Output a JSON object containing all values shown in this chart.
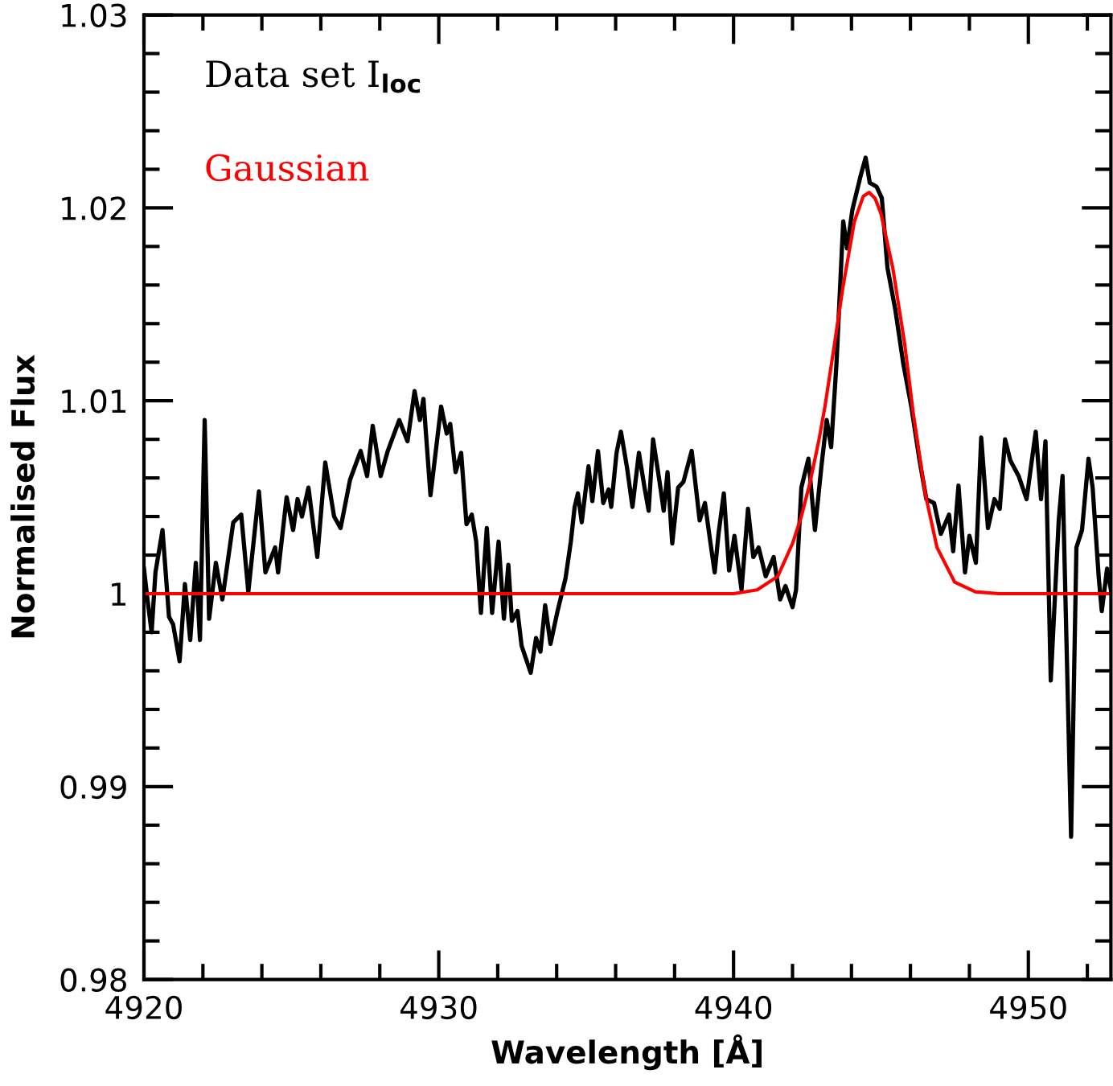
{
  "chart_data": {
    "type": "line",
    "xlabel": "Wavelength [Å]",
    "ylabel": "Normalised Flux",
    "legend": "top left",
    "xlim": [
      4920,
      4952.8
    ],
    "ylim": [
      0.98,
      1.03
    ],
    "xticks": [
      4920,
      {
        "value": 4922,
        "label": null
      },
      {
        "value": 4924,
        "label": null
      },
      {
        "value": 4926,
        "label": null
      },
      {
        "value": 4928,
        "label": null
      },
      4930,
      {
        "value": 4932,
        "label": null
      },
      {
        "value": 4934,
        "label": null
      },
      {
        "value": 4936,
        "label": null
      },
      {
        "value": 4938,
        "label": null
      },
      4940,
      {
        "value": 4942,
        "label": null
      },
      {
        "value": 4944,
        "label": null
      },
      {
        "value": 4946,
        "label": null
      },
      {
        "value": 4948,
        "label": null
      },
      4950,
      {
        "value": 4952,
        "label": null
      }
    ],
    "yticks": [
      0.98,
      {
        "value": 0.982,
        "label": null
      },
      {
        "value": 0.984,
        "label": null
      },
      {
        "value": 0.986,
        "label": null
      },
      {
        "value": 0.988,
        "label": null
      },
      0.99,
      {
        "value": 0.992,
        "label": null
      },
      {
        "value": 0.994,
        "label": null
      },
      {
        "value": 0.996,
        "label": null
      },
      {
        "value": 0.998,
        "label": null
      },
      1,
      {
        "value": 1.002,
        "label": null
      },
      {
        "value": 1.004,
        "label": null
      },
      {
        "value": 1.006,
        "label": null
      },
      {
        "value": 1.008,
        "label": null
      },
      1.01,
      {
        "value": 1.012,
        "label": null
      },
      {
        "value": 1.014,
        "label": null
      },
      {
        "value": 1.016,
        "label": null
      },
      {
        "value": 1.018,
        "label": null
      },
      1.02,
      {
        "value": 1.022,
        "label": null
      },
      {
        "value": 1.024,
        "label": null
      },
      {
        "value": 1.026,
        "label": null
      },
      {
        "value": 1.028,
        "label": null
      },
      1.03
    ],
    "series": [
      {
        "name": "Data set I$_{loc}$",
        "color": "#000000",
        "x": [
          4920.0,
          4920.12,
          4920.26,
          4920.39,
          4920.63,
          4920.85,
          4920.99,
          4921.21,
          4921.39,
          4921.57,
          4921.76,
          4921.9,
          4922.06,
          4922.21,
          4922.44,
          4922.66,
          4923.03,
          4923.3,
          4923.54,
          4923.9,
          4924.12,
          4924.45,
          4924.55,
          4924.84,
          4925.06,
          4925.21,
          4925.36,
          4925.58,
          4925.88,
          4926.15,
          4926.45,
          4926.67,
          4926.99,
          4927.35,
          4927.57,
          4927.76,
          4928.03,
          4928.27,
          4928.66,
          4928.94,
          4929.18,
          4929.36,
          4929.48,
          4929.72,
          4930.08,
          4930.27,
          4930.39,
          4930.57,
          4930.76,
          4930.94,
          4931.12,
          4931.27,
          4931.43,
          4931.63,
          4931.81,
          4932.03,
          4932.21,
          4932.36,
          4932.48,
          4932.67,
          4932.81,
          4933.12,
          4933.3,
          4933.45,
          4933.61,
          4933.79,
          4934.03,
          4934.3,
          4934.48,
          4934.61,
          4934.72,
          4934.85,
          4935.08,
          4935.21,
          4935.4,
          4935.58,
          4935.76,
          4935.85,
          4936.03,
          4936.18,
          4936.39,
          4936.57,
          4936.79,
          4936.98,
          4937.12,
          4937.27,
          4937.49,
          4937.63,
          4937.76,
          4937.92,
          4938.12,
          4938.3,
          4938.58,
          4938.85,
          4939.03,
          4939.21,
          4939.36,
          4939.49,
          4939.67,
          4939.85,
          4940.03,
          4940.27,
          4940.49,
          4940.67,
          4940.85,
          4941.09,
          4941.36,
          4941.58,
          4941.76,
          4942.0,
          4942.12,
          4942.3,
          4942.54,
          4942.76,
          4942.98,
          4943.16,
          4943.31,
          4943.49,
          4943.72,
          4943.85,
          4944.03,
          4944.3,
          4944.48,
          4944.62,
          4944.85,
          4945.03,
          4945.22,
          4945.49,
          4945.76,
          4946.03,
          4946.31,
          4946.54,
          4946.8,
          4947.03,
          4947.31,
          4947.45,
          4947.63,
          4947.85,
          4948.0,
          4948.22,
          4948.4,
          4948.63,
          4948.85,
          4949.03,
          4949.21,
          4949.39,
          4949.67,
          4949.94,
          4950.25,
          4950.43,
          4950.58,
          4950.76,
          4951.03,
          4951.16,
          4951.45,
          4951.63,
          4951.82,
          4952.04,
          4952.18,
          4952.39,
          4952.49,
          4952.67,
          4952.8
        ],
        "values": [
          1.0013,
          0.9997,
          0.998,
          1.0011,
          1.0033,
          0.9988,
          0.9984,
          0.9965,
          1.0005,
          0.9976,
          1.0016,
          0.9976,
          1.009,
          0.9987,
          1.0016,
          0.9997,
          1.0037,
          1.0041,
          1.0001,
          1.0053,
          1.0011,
          1.0024,
          1.0011,
          1.005,
          1.0033,
          1.0049,
          1.004,
          1.0055,
          1.0019,
          1.0068,
          1.004,
          1.0034,
          1.0059,
          1.0074,
          1.0061,
          1.0087,
          1.0061,
          1.0074,
          1.009,
          1.0079,
          1.0105,
          1.009,
          1.0101,
          1.0051,
          1.0097,
          1.0083,
          1.0088,
          1.0063,
          1.0073,
          1.0036,
          1.0041,
          1.0027,
          0.999,
          1.0034,
          0.999,
          1.0027,
          0.9987,
          1.0015,
          0.9986,
          0.9991,
          0.9973,
          0.9959,
          0.9977,
          0.997,
          0.9994,
          0.9974,
          0.9991,
          1.0008,
          1.0027,
          1.0045,
          1.0052,
          1.0037,
          1.0066,
          1.0048,
          1.0074,
          1.0047,
          1.0054,
          1.0045,
          1.0073,
          1.0084,
          1.0065,
          1.0045,
          1.0073,
          1.0055,
          1.0043,
          1.008,
          1.0058,
          1.0043,
          1.0063,
          1.0026,
          1.0055,
          1.0058,
          1.0074,
          1.0038,
          1.0047,
          1.0027,
          1.0011,
          1.0031,
          1.0052,
          1.0012,
          1.003,
          1.0002,
          1.0044,
          1.0019,
          1.0024,
          1.0009,
          1.0019,
          0.9997,
          1.0004,
          0.9993,
          1.0002,
          1.0055,
          1.007,
          1.0033,
          1.0066,
          1.009,
          1.0076,
          1.0119,
          1.0193,
          1.0179,
          1.0199,
          1.0216,
          1.0226,
          1.0213,
          1.0211,
          1.0205,
          1.0169,
          1.0147,
          1.0119,
          1.0097,
          1.0069,
          1.0049,
          1.0047,
          1.0031,
          1.0041,
          1.0022,
          1.0056,
          1.0011,
          1.003,
          1.0016,
          1.0081,
          1.0034,
          1.0049,
          1.0044,
          1.008,
          1.0069,
          1.0061,
          1.0049,
          1.0084,
          1.0049,
          1.0079,
          0.9955,
          1.0038,
          1.0061,
          0.9874,
          1.0024,
          1.0033,
          1.007,
          1.0055,
          1.0008,
          0.9991,
          1.0013,
          1.0002
        ]
      },
      {
        "name": "Gaussian",
        "color": "#ff0000",
        "x": [
          4920.0,
          4940.0,
          4940.8,
          4941.5,
          4942.0,
          4942.3,
          4942.6,
          4942.9,
          4943.1,
          4943.4,
          4943.7,
          4944.1,
          4944.4,
          4944.6,
          4944.8,
          4945.0,
          4945.4,
          4945.8,
          4946.1,
          4946.5,
          4946.9,
          4947.5,
          4948.2,
          4949.0,
          4952.8
        ],
        "values": [
          1.0,
          1.0,
          1.0002,
          1.0009,
          1.0026,
          1.004,
          1.0058,
          1.008,
          1.0097,
          1.0127,
          1.0158,
          1.0193,
          1.0206,
          1.0208,
          1.0205,
          1.0197,
          1.0169,
          1.013,
          1.0093,
          1.0052,
          1.0024,
          1.0006,
          1.0001,
          1.0,
          1.0
        ]
      }
    ]
  }
}
